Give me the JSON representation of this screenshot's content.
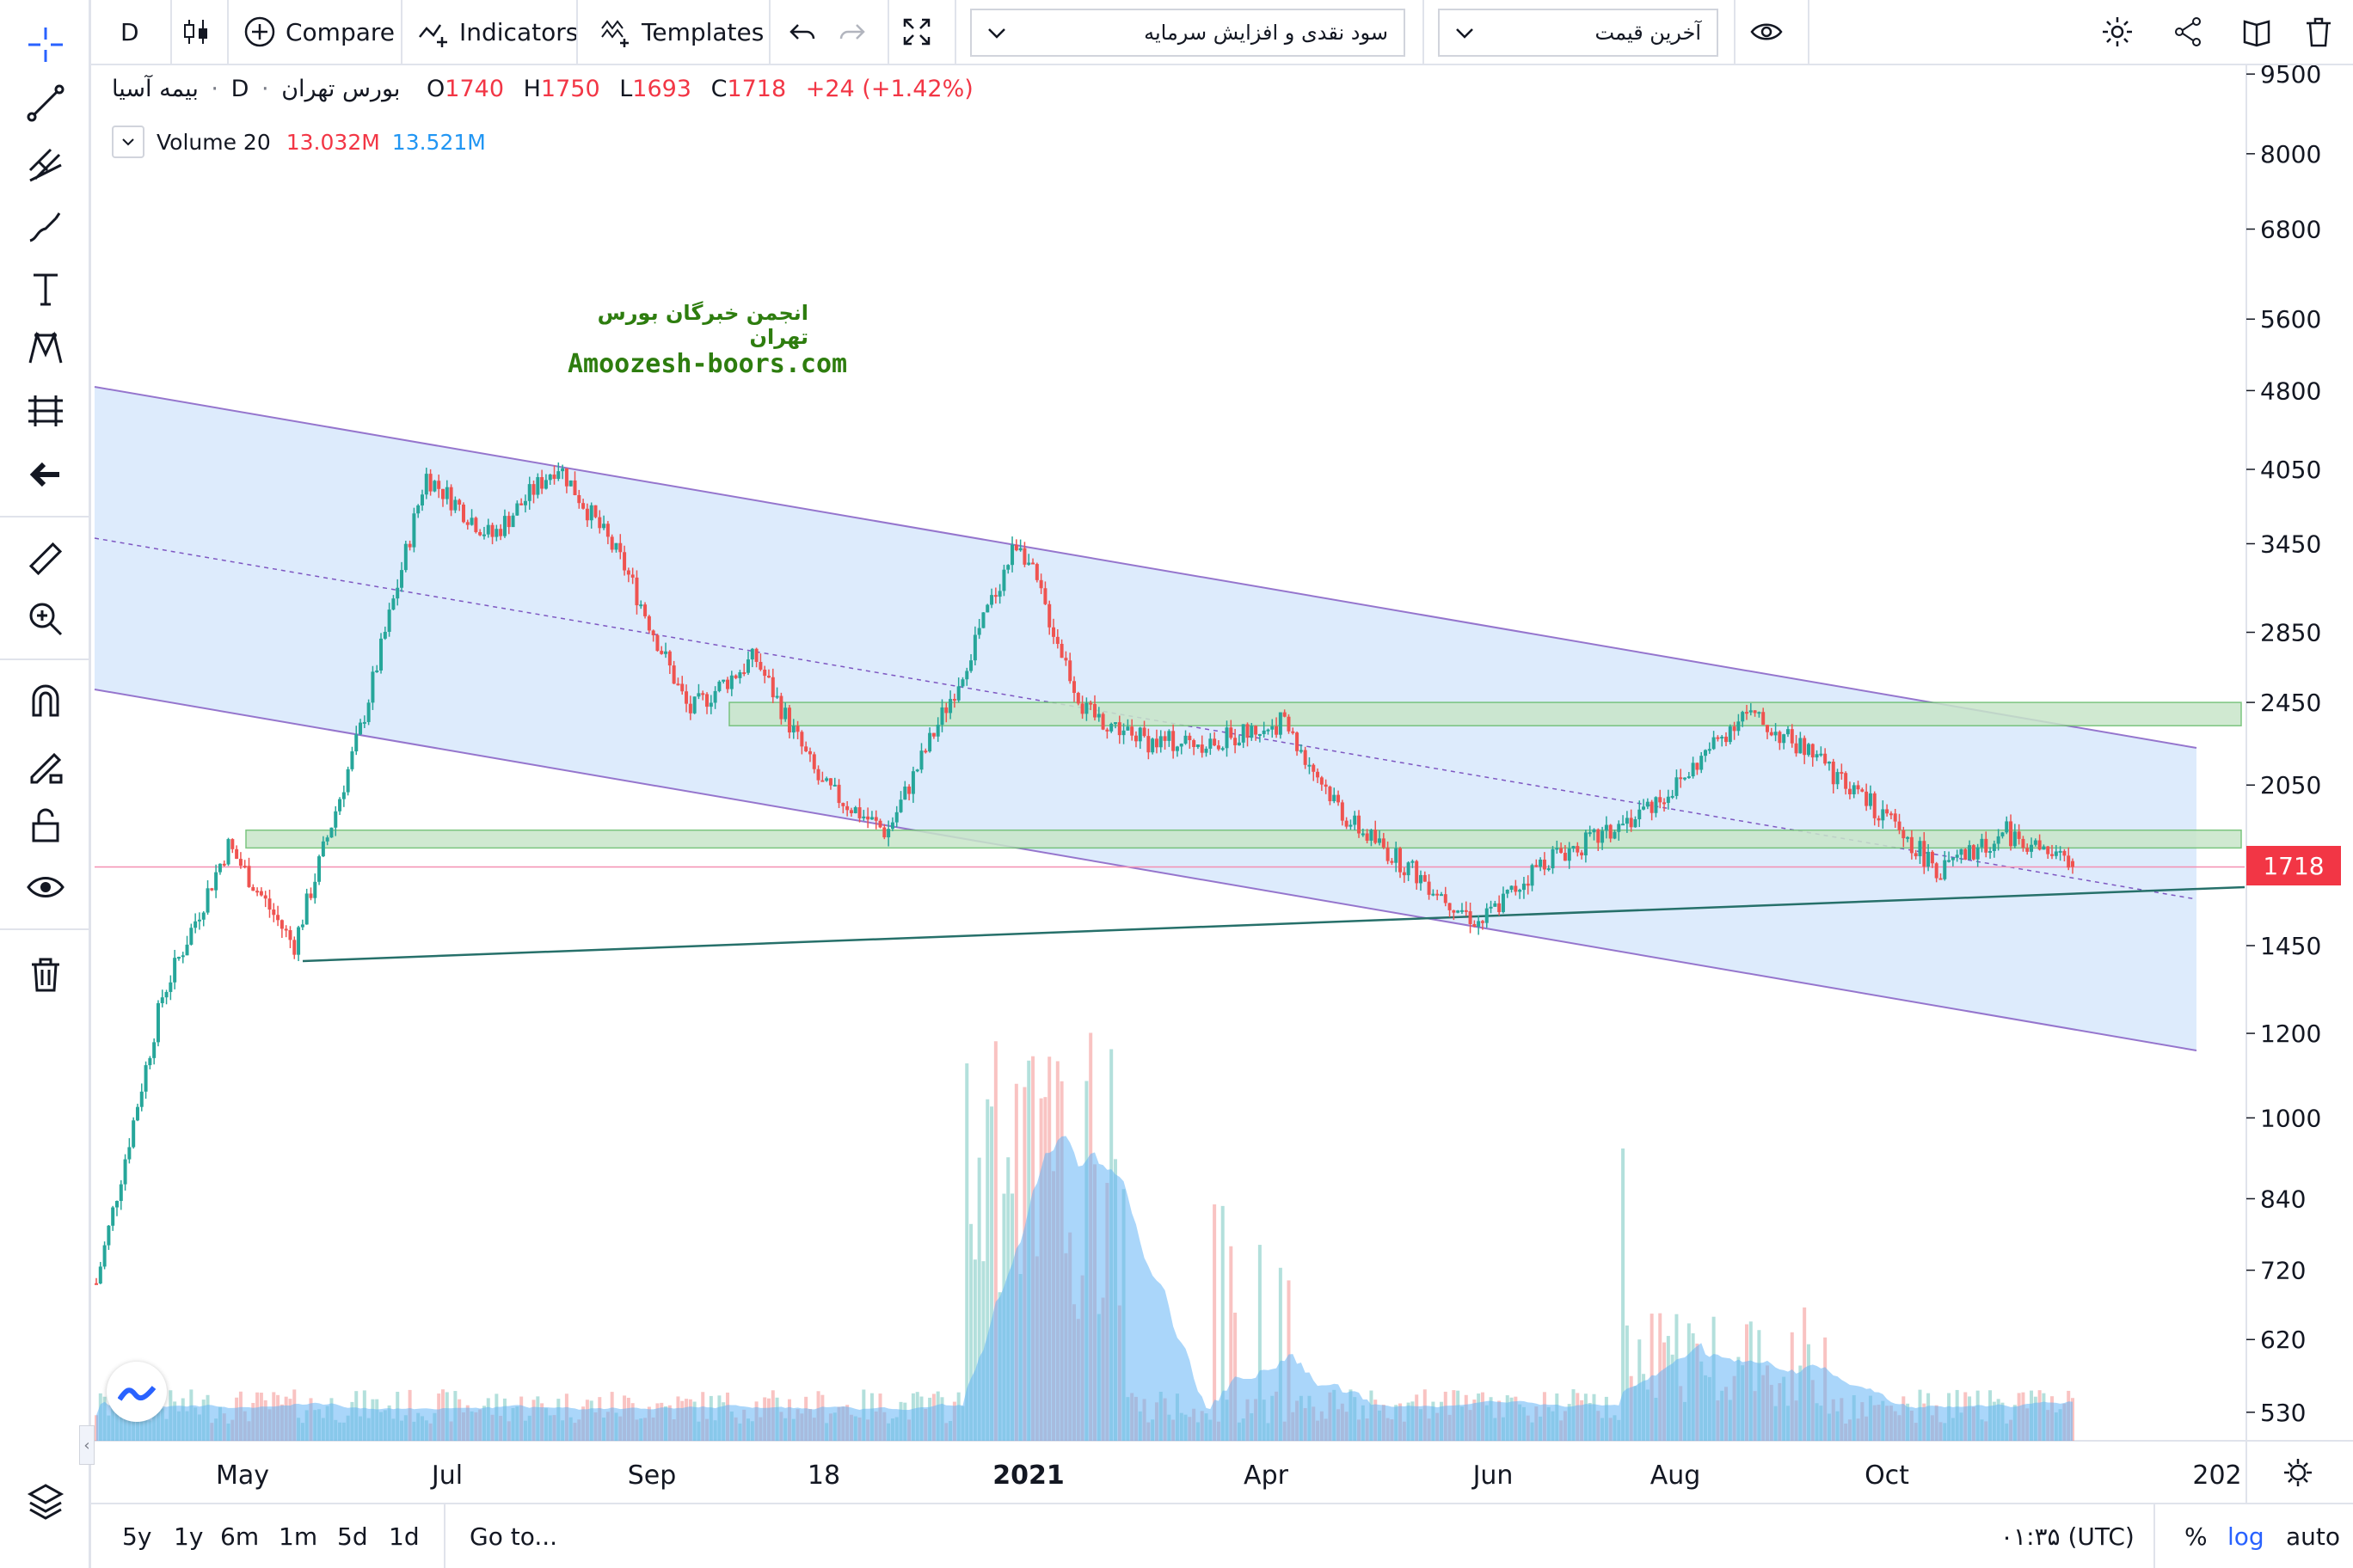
{
  "toolbar": {
    "interval": "D",
    "compare_label": "Compare",
    "indicators_label": "Indicators",
    "templates_label": "Templates",
    "study_dropdown": "سود نقدی و افزایش سرمایه",
    "price_dropdown": "آخرین قیمت"
  },
  "left_tools": [
    "crosshair-icon",
    "trend-line-icon",
    "pitchfork-icon",
    "brush-icon",
    "text-icon",
    "pattern-icon",
    "prediction-icon",
    "back-arrow-icon",
    "ruler-icon",
    "zoom-in-icon",
    "magnet-icon",
    "lock-drawing-icon",
    "unlock-icon",
    "eye-icon",
    "trash-icon"
  ],
  "legend": {
    "symbol": "بیمه آسیا",
    "interval": "D",
    "exchange": "بورس تهران",
    "o_label": "O",
    "o": "1740",
    "h_label": "H",
    "h": "1750",
    "l_label": "L",
    "l": "1693",
    "c_label": "C",
    "c": "1718",
    "change": "+24 (+1.42%)"
  },
  "volume_legend": {
    "name": "Volume 20",
    "v1": "13.032M",
    "v2": "13.521M"
  },
  "watermark": {
    "fa": "انجمن خبرگان بورس تهران",
    "en": "Amoozesh-boors.com"
  },
  "last_price_label": "1718",
  "bottom": {
    "ranges": [
      "5y",
      "1y",
      "6m",
      "1m",
      "5d",
      "1d"
    ],
    "goto": "Go to...",
    "time": "۰۱:۳۵ (UTC)",
    "pct": "%",
    "log": "log",
    "auto": "auto"
  },
  "colors": {
    "up": "#26a69a",
    "down": "#ef5350",
    "channel_fill": "#dbeafc",
    "channel_line": "#9575cd",
    "zone": "#c8e6c9",
    "volume_ma": "#64b5f6"
  },
  "chart_data": {
    "type": "candlestick",
    "scale": "log",
    "y_ticks": [
      "9500",
      "8000",
      "6800",
      "5600",
      "4800",
      "4050",
      "3450",
      "2850",
      "2450",
      "2050",
      "1718",
      "1450",
      "1200",
      "1000",
      "840",
      "720",
      "620",
      "530"
    ],
    "x_labels": [
      "May",
      "Jul",
      "Sep",
      "18",
      "2021",
      "Apr",
      "Jun",
      "Aug",
      "Oct",
      "202"
    ],
    "price_path": [
      [
        "Apr-20",
        700
      ],
      [
        "May-20",
        1300
      ],
      [
        "May-20b",
        1800
      ],
      [
        "Jun-20",
        1450
      ],
      [
        "Jun-20b",
        2300
      ],
      [
        "Jul-20",
        4000
      ],
      [
        "Aug-20",
        3500
      ],
      [
        "Aug-20b",
        4100
      ],
      [
        "Sep-20",
        3300
      ],
      [
        "Sep-20b",
        2400
      ],
      [
        "Oct-20",
        2700
      ],
      [
        "Nov-20",
        2050
      ],
      [
        "Nov-20b",
        1850
      ],
      [
        "Dec-20",
        2500
      ],
      [
        "Jan-21",
        3500
      ],
      [
        "Jan-21b",
        2400
      ],
      [
        "Feb-21",
        2250
      ],
      [
        "Mar-21",
        2250
      ],
      [
        "Apr-21",
        2350
      ],
      [
        "Apr-21b",
        1900
      ],
      [
        "May-21",
        1700
      ],
      [
        "Jun-21",
        1520
      ],
      [
        "Jun-21b",
        1750
      ],
      [
        "Jul-21",
        1850
      ],
      [
        "Aug-21",
        2050
      ],
      [
        "Aug-21b",
        2400
      ],
      [
        "Sep-21",
        2200
      ],
      [
        "Oct-21",
        1950
      ],
      [
        "Nov-21",
        1700
      ],
      [
        "Nov-21b",
        1850
      ],
      [
        "Dec-21",
        1718
      ]
    ],
    "last": {
      "open": 1740,
      "high": 1750,
      "low": 1693,
      "close": 1718,
      "change": 24,
      "change_pct": 1.42
    },
    "support_zones": [
      [
        1790,
        1860
      ],
      [
        2330,
        2450
      ]
    ],
    "annotations": [
      "descending regression channel",
      "ascending trendline"
    ],
    "volume_ma_period": 20
  }
}
